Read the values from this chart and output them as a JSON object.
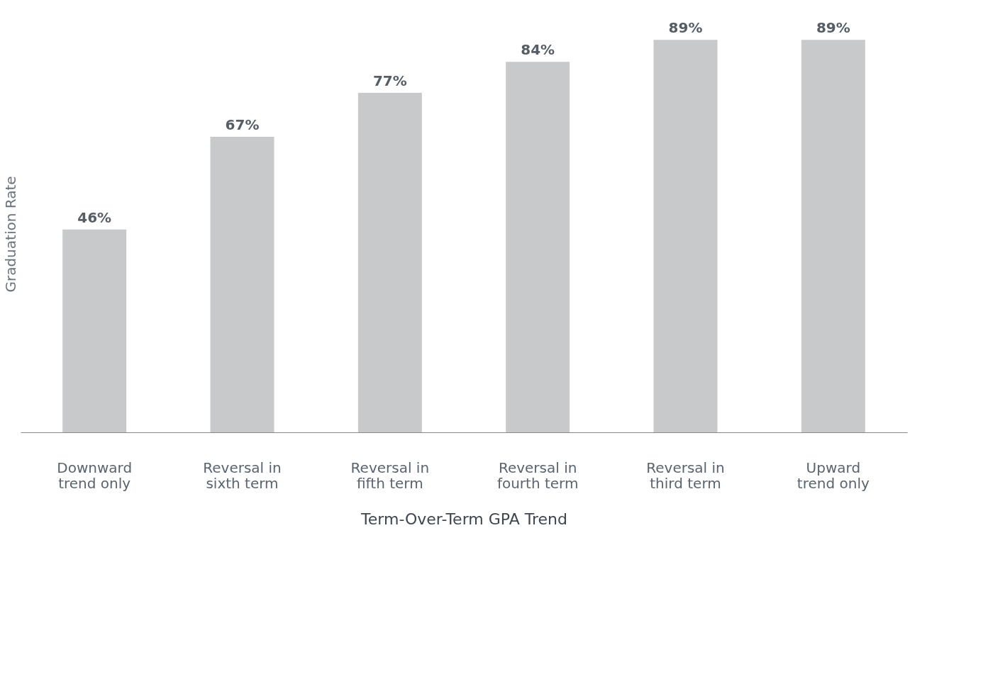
{
  "chart_data": {
    "type": "bar",
    "xlabel": "Term-Over-Term GPA Trend",
    "ylabel": "Graduation Rate",
    "categories": [
      "Downward\ntrend only",
      "Reversal in\nsixth term",
      "Reversal in\nfifth term",
      "Reversal in\nfourth term",
      "Reversal in\nthird term",
      "Upward\ntrend only"
    ],
    "values": [
      46,
      67,
      77,
      84,
      89,
      89
    ],
    "value_labels": [
      "46%",
      "67%",
      "77%",
      "84%",
      "89%",
      "89%"
    ],
    "color": "#c8c9cb",
    "grid": false
  }
}
